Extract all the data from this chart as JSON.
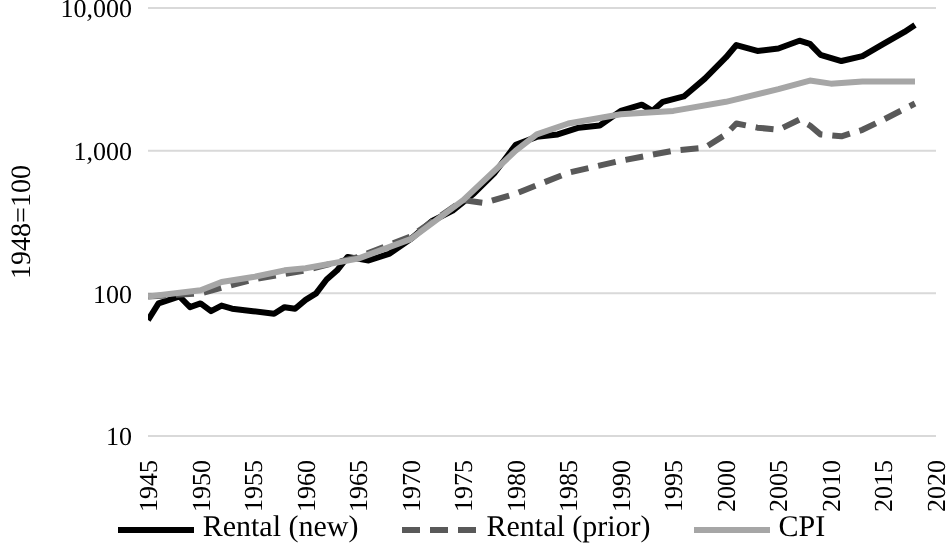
{
  "chart_data": {
    "type": "line",
    "ylabel": "1948=100",
    "log": "y",
    "grid": "y",
    "legend": "bottom",
    "marker": "none",
    "xlim": [
      1945,
      2020
    ],
    "xticks": [
      1945,
      1950,
      1955,
      1960,
      1965,
      1970,
      1975,
      1980,
      1985,
      1990,
      1995,
      2000,
      2005,
      2010,
      2015,
      2020
    ],
    "ylim": [
      10,
      10000
    ],
    "yticks": [
      10,
      100,
      {
        "value": 1000,
        "label": "1,000"
      },
      {
        "value": 10000,
        "label": "10,000"
      }
    ],
    "series": [
      {
        "name": "Rental (new)",
        "color": "#000000",
        "line_style": "solid",
        "x": [
          1945,
          1946,
          1948,
          1949,
          1950,
          1951,
          1952,
          1953,
          1955,
          1957,
          1958,
          1959,
          1960,
          1961,
          1962,
          1963,
          1964,
          1966,
          1968,
          1970,
          1972,
          1974,
          1976,
          1978,
          1980,
          1982,
          1984,
          1986,
          1988,
          1990,
          1992,
          1993,
          1994,
          1996,
          1998,
          2000,
          2001,
          2003,
          2005,
          2007,
          2008,
          2009,
          2011,
          2013,
          2015,
          2017,
          2018
        ],
        "values": [
          65,
          85,
          95,
          80,
          85,
          75,
          82,
          78,
          75,
          72,
          80,
          78,
          90,
          100,
          125,
          145,
          180,
          170,
          190,
          240,
          320,
          380,
          500,
          700,
          1100,
          1250,
          1300,
          1450,
          1500,
          1900,
          2100,
          1900,
          2200,
          2400,
          3200,
          4500,
          5500,
          5000,
          5200,
          5900,
          5600,
          4700,
          4250,
          4600,
          5600,
          6800,
          7600
        ]
      },
      {
        "name": "Rental (prior)",
        "color": "#595959",
        "line_style": "dashed",
        "x": [
          1945,
          1950,
          1955,
          1960,
          1965,
          1970,
          1975,
          1977,
          1980,
          1985,
          1990,
          1995,
          1998,
          2000,
          2001,
          2003,
          2005,
          2007,
          2008,
          2009,
          2011,
          2013,
          2015,
          2018
        ],
        "values": [
          95,
          100,
          125,
          145,
          180,
          250,
          450,
          430,
          500,
          700,
          850,
          1000,
          1050,
          1300,
          1550,
          1450,
          1400,
          1650,
          1500,
          1300,
          1260,
          1400,
          1650,
          2140
        ]
      },
      {
        "name": "CPI",
        "color": "#a6a6a6",
        "line_style": "solid",
        "x": [
          1945,
          1950,
          1952,
          1955,
          1958,
          1960,
          1965,
          1970,
          1975,
          1980,
          1982,
          1985,
          1990,
          1995,
          2000,
          2005,
          2008,
          2010,
          2013,
          2018
        ],
        "values": [
          95,
          105,
          120,
          130,
          145,
          150,
          175,
          240,
          450,
          1000,
          1300,
          1550,
          1800,
          1900,
          2200,
          2700,
          3100,
          2950,
          3050,
          3050
        ]
      }
    ]
  }
}
